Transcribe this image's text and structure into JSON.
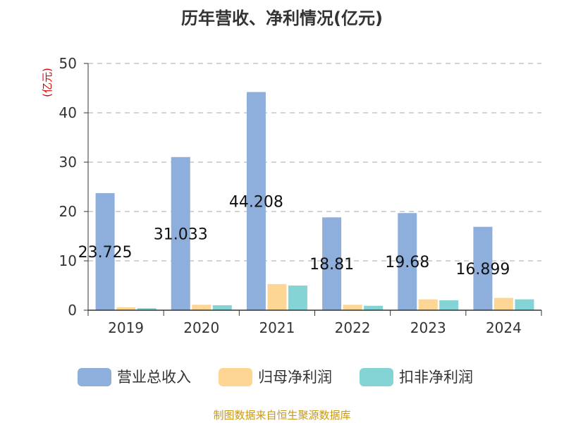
{
  "chart_data": {
    "type": "bar",
    "title": "历年营收、净利情况(亿元)",
    "unit_label": "(亿元)",
    "categories": [
      "2019",
      "2020",
      "2021",
      "2022",
      "2023",
      "2024"
    ],
    "series": [
      {
        "name": "营业总收入",
        "color": "#8eaedb",
        "values": [
          23.725,
          31.033,
          44.208,
          18.81,
          19.68,
          16.899
        ]
      },
      {
        "name": "归母净利润",
        "color": "#fdd695",
        "values": [
          0.6,
          1.1,
          5.3,
          1.1,
          2.2,
          2.5
        ]
      },
      {
        "name": "扣非净利润",
        "color": "#84d4d6",
        "values": [
          0.4,
          1.0,
          5.0,
          0.9,
          2.0,
          2.2
        ]
      }
    ],
    "data_labels": [
      "23.725",
      "31.033",
      "44.208",
      "18.81",
      "19.68",
      "16.899"
    ],
    "ylim": [
      0,
      50
    ],
    "yticks": [
      "0",
      "10",
      "20",
      "30",
      "40",
      "50"
    ],
    "grid": true,
    "legend_position": "bottom"
  },
  "footer": {
    "source": "制图数据来自恒生聚源数据库"
  }
}
